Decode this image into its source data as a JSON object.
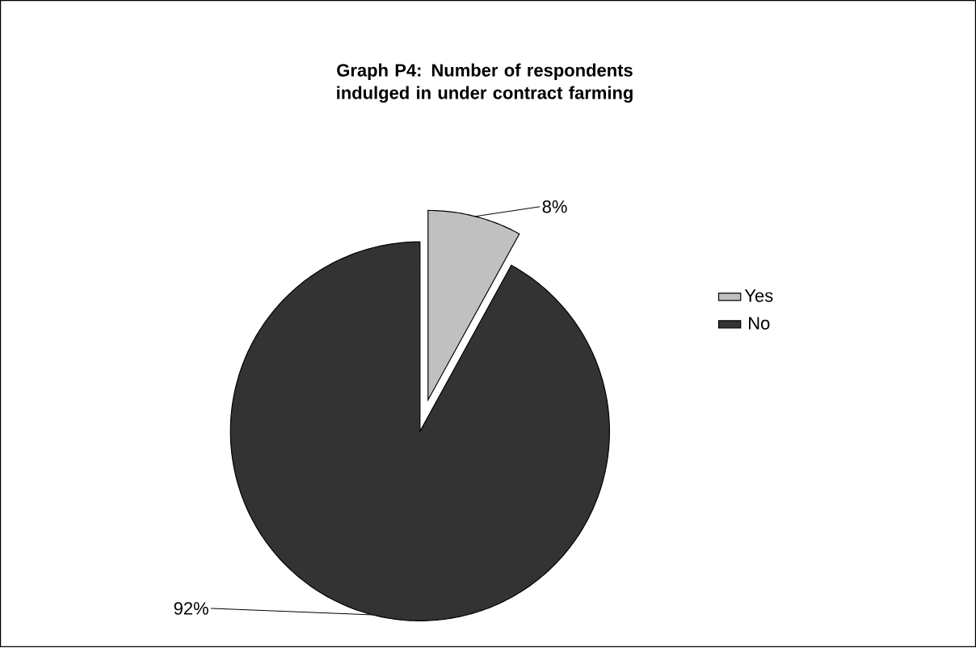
{
  "chart_data": {
    "type": "pie",
    "title": "Graph P4: Number of respondents indulged  in under contract farming",
    "categories": [
      "Yes",
      "No"
    ],
    "values": [
      8,
      92
    ],
    "colors": [
      "#c0c0c0",
      "#333333"
    ],
    "value_labels": [
      "8%",
      "92%"
    ],
    "legend": "right"
  }
}
